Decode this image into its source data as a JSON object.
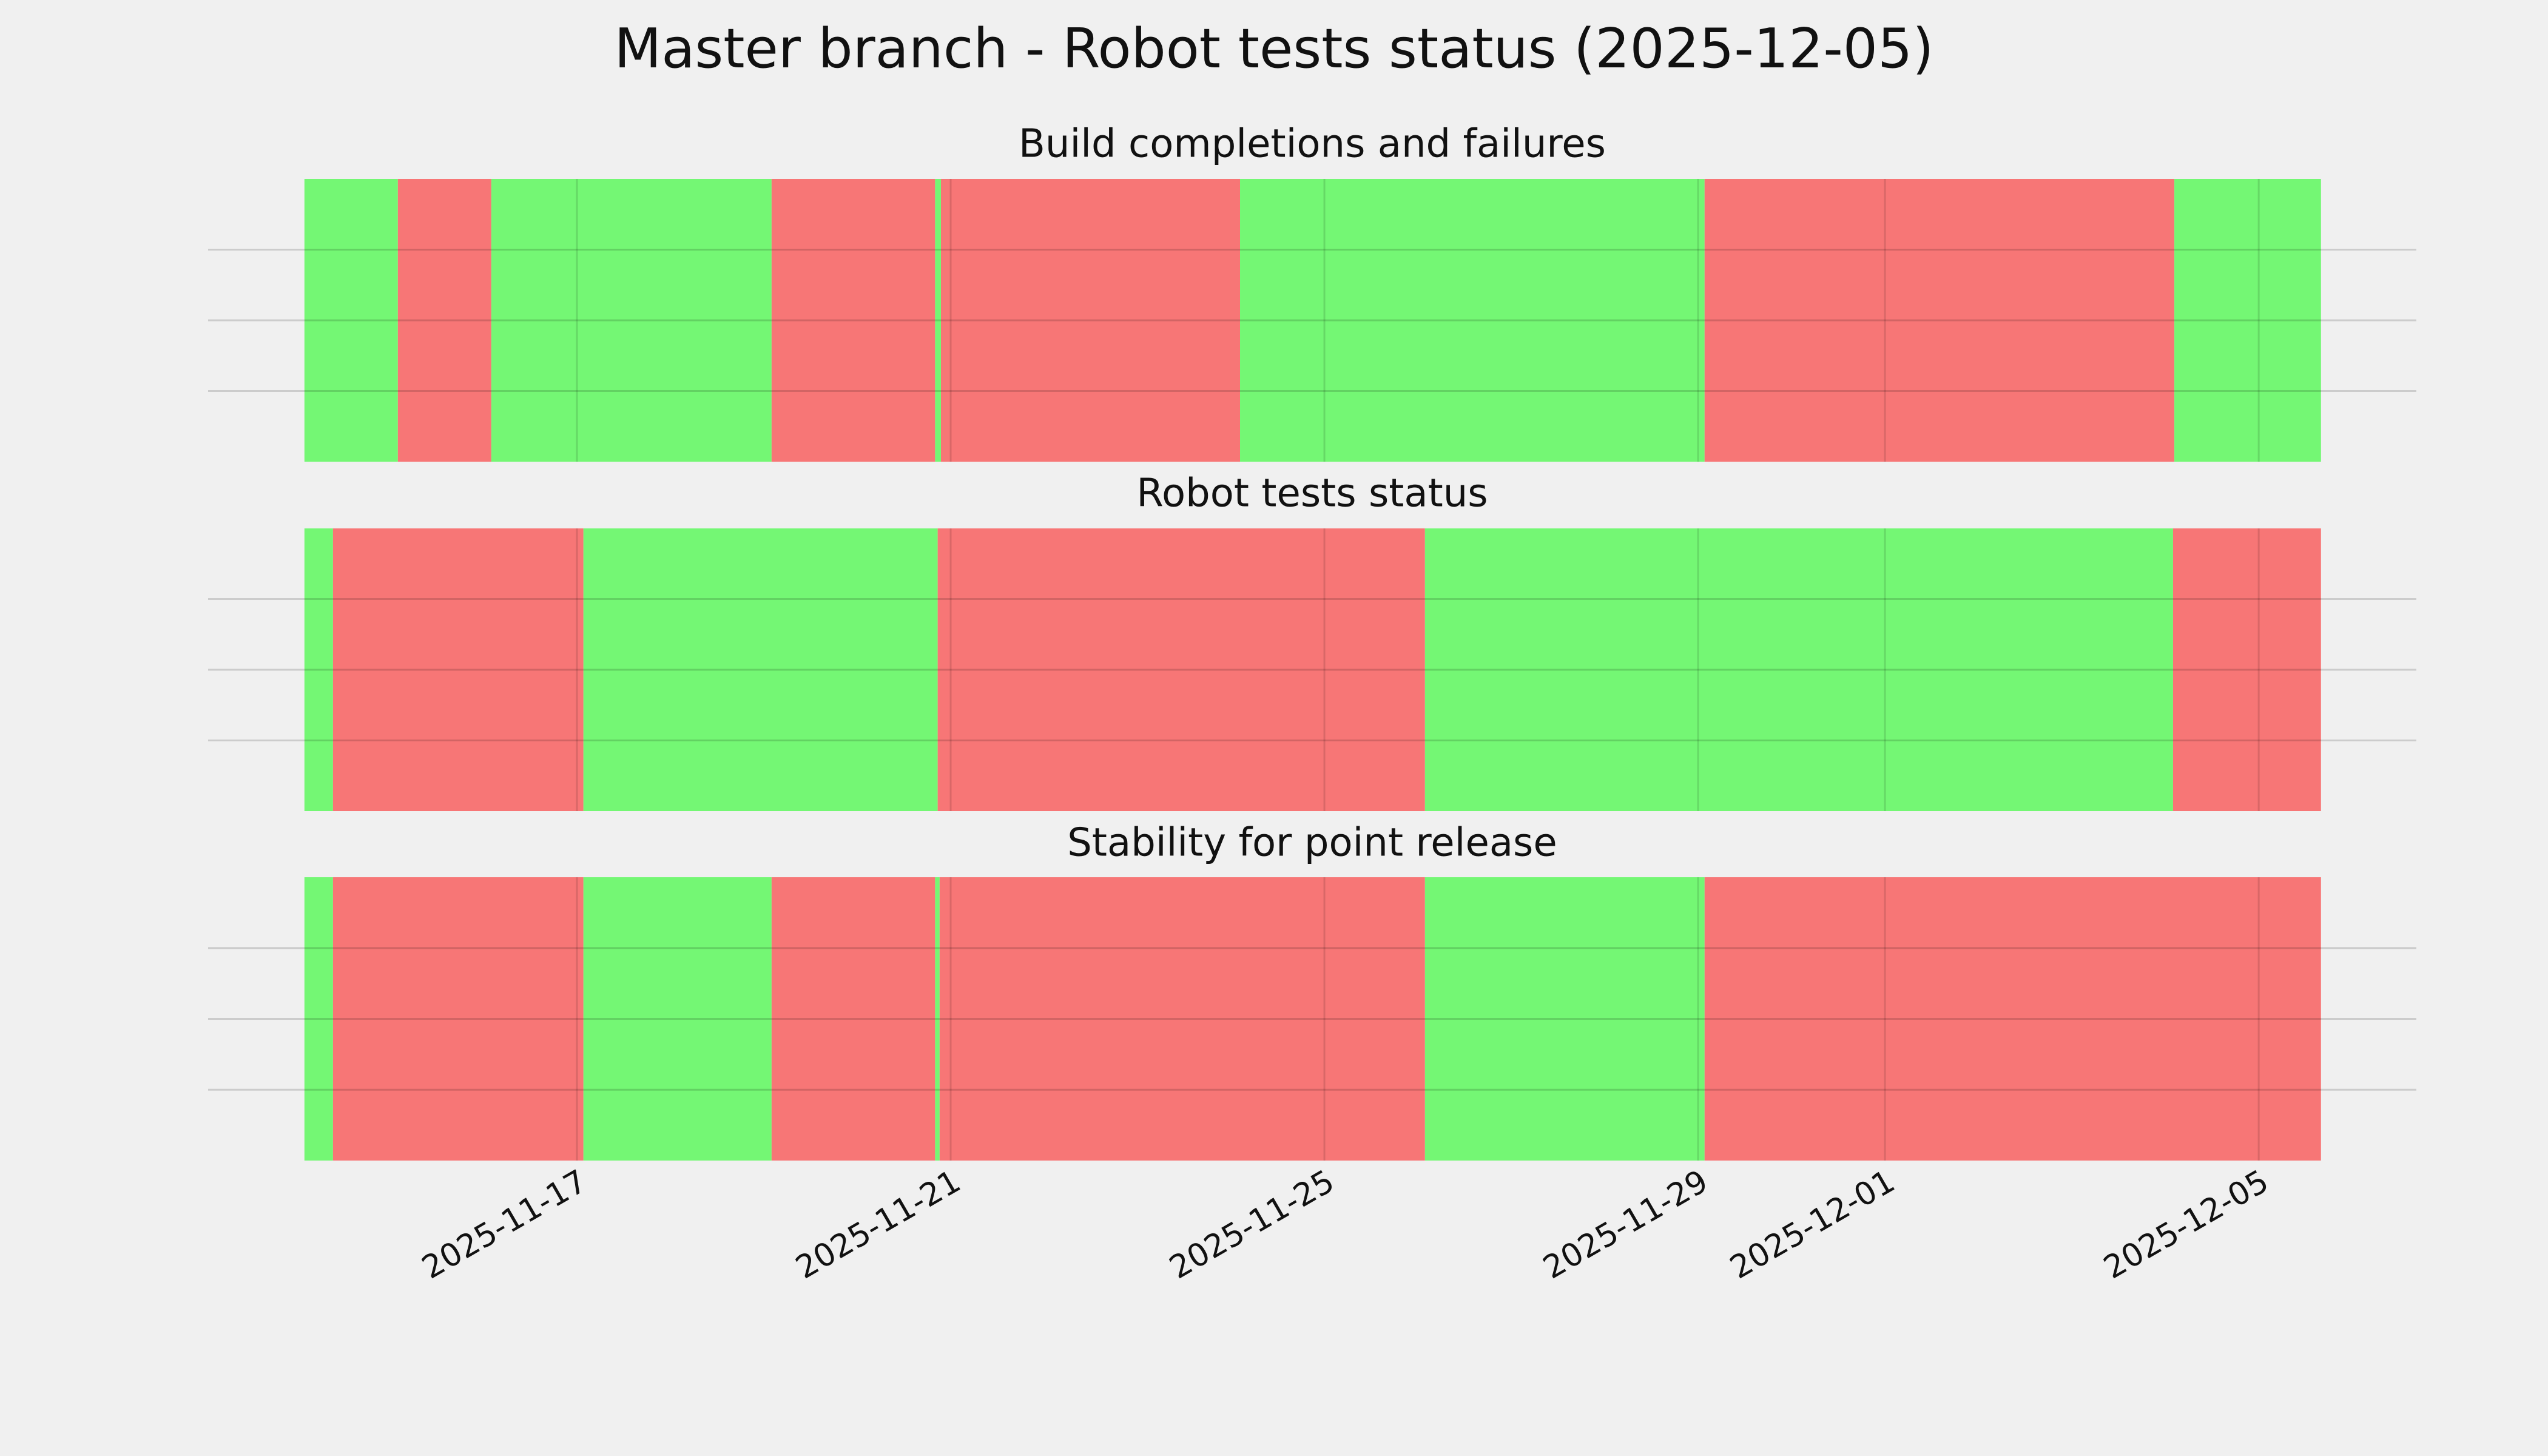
{
  "title": "Master branch - Robot tests status (2025-12-05)",
  "chart_data": [
    {
      "type": "timeline",
      "title": "Build completions and failures",
      "segments": [
        {
          "start": "2025-11-14T02:00",
          "end": "2025-11-15T02:00",
          "color": "#74f774"
        },
        {
          "start": "2025-11-15T02:00",
          "end": "2025-11-16T02:00",
          "color": "#f77676"
        },
        {
          "start": "2025-11-16T02:00",
          "end": "2025-11-19T02:00",
          "color": "#74f774"
        },
        {
          "start": "2025-11-19T02:00",
          "end": "2025-11-20T20:00",
          "color": "#f77676"
        },
        {
          "start": "2025-11-20T20:00",
          "end": "2025-11-20T21:30",
          "color": "#74f774"
        },
        {
          "start": "2025-11-20T21:30",
          "end": "2025-11-24T02:20",
          "color": "#f77676"
        },
        {
          "start": "2025-11-24T02:20",
          "end": "2025-11-29T01:40",
          "color": "#74f774"
        },
        {
          "start": "2025-11-29T01:40",
          "end": "2025-12-04T02:20",
          "color": "#f77676"
        },
        {
          "start": "2025-12-04T02:20",
          "end": "2025-12-05T16:00",
          "color": "#74f774"
        }
      ],
      "xlim": [
        "2025-11-13T01:15",
        "2025-12-06T16:30"
      ],
      "xticks": [
        "2025-11-17",
        "2025-11-21",
        "2025-11-25",
        "2025-11-29",
        "2025-12-01",
        "2025-12-05"
      ],
      "ylim": [
        0,
        1
      ],
      "yticks": [
        0.25,
        0.5,
        0.75
      ],
      "grid": true
    },
    {
      "type": "timeline",
      "title": "Robot tests status",
      "segments": [
        {
          "start": "2025-11-14T02:00",
          "end": "2025-11-14T09:20",
          "color": "#74f774"
        },
        {
          "start": "2025-11-14T09:20",
          "end": "2025-11-17T01:40",
          "color": "#f77676"
        },
        {
          "start": "2025-11-17T01:40",
          "end": "2025-11-20T20:40",
          "color": "#74f774"
        },
        {
          "start": "2025-11-20T20:40",
          "end": "2025-11-26T01:50",
          "color": "#f77676"
        },
        {
          "start": "2025-11-26T01:50",
          "end": "2025-12-04T02:00",
          "color": "#74f774"
        },
        {
          "start": "2025-12-04T02:00",
          "end": "2025-12-05T16:00",
          "color": "#f77676"
        }
      ],
      "xlim": [
        "2025-11-13T01:15",
        "2025-12-06T16:30"
      ],
      "xticks": [
        "2025-11-17",
        "2025-11-21",
        "2025-11-25",
        "2025-11-29",
        "2025-12-01",
        "2025-12-05"
      ],
      "ylim": [
        0,
        1
      ],
      "yticks": [
        0.25,
        0.5,
        0.75
      ],
      "grid": true
    },
    {
      "type": "timeline",
      "title": "Stability for point release",
      "segments": [
        {
          "start": "2025-11-14T02:00",
          "end": "2025-11-14T09:20",
          "color": "#74f774"
        },
        {
          "start": "2025-11-14T09:20",
          "end": "2025-11-17T01:40",
          "color": "#f77676"
        },
        {
          "start": "2025-11-17T01:40",
          "end": "2025-11-19T02:00",
          "color": "#74f774"
        },
        {
          "start": "2025-11-19T02:00",
          "end": "2025-11-20T20:00",
          "color": "#f77676"
        },
        {
          "start": "2025-11-20T20:00",
          "end": "2025-11-20T21:10",
          "color": "#74f774"
        },
        {
          "start": "2025-11-20T21:10",
          "end": "2025-11-26T01:50",
          "color": "#f77676"
        },
        {
          "start": "2025-11-26T01:50",
          "end": "2025-11-29T01:40",
          "color": "#74f774"
        },
        {
          "start": "2025-11-29T01:40",
          "end": "2025-12-05T16:00",
          "color": "#f77676"
        }
      ],
      "xlim": [
        "2025-11-13T01:15",
        "2025-12-06T16:30"
      ],
      "xticks": [
        "2025-11-17",
        "2025-11-21",
        "2025-11-25",
        "2025-11-29",
        "2025-12-01",
        "2025-12-05"
      ],
      "ylim": [
        0,
        1
      ],
      "yticks": [
        0.25,
        0.5,
        0.75
      ],
      "grid": true,
      "xtick_labels": true
    }
  ]
}
